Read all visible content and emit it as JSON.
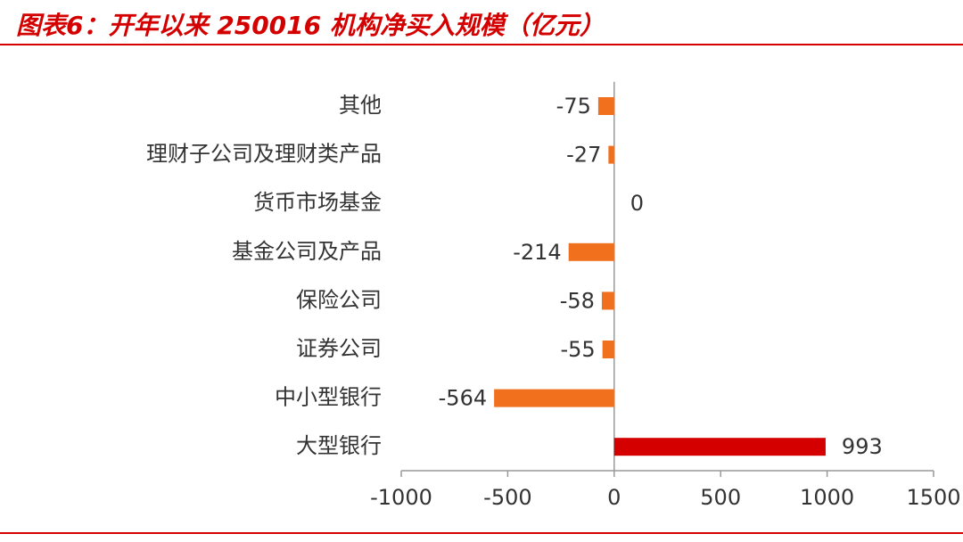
{
  "chart_data": {
    "type": "hbar",
    "title": "图表6：开年以来 250016 机构净买入规模（亿元）",
    "categories": [
      "其他",
      "理财子公司及理财类产品",
      "货币市场基金",
      "基金公司及产品",
      "保险公司",
      "证券公司",
      "中小型银行",
      "大型银行"
    ],
    "values": [
      -75,
      -27,
      0,
      -214,
      -58,
      -55,
      -564,
      993
    ],
    "positive_color": "#d40000",
    "negative_color": "#f0701e",
    "xlim": [
      -1000,
      1500
    ],
    "xticks": [
      -1000,
      -500,
      0,
      500,
      1000,
      1500
    ]
  }
}
